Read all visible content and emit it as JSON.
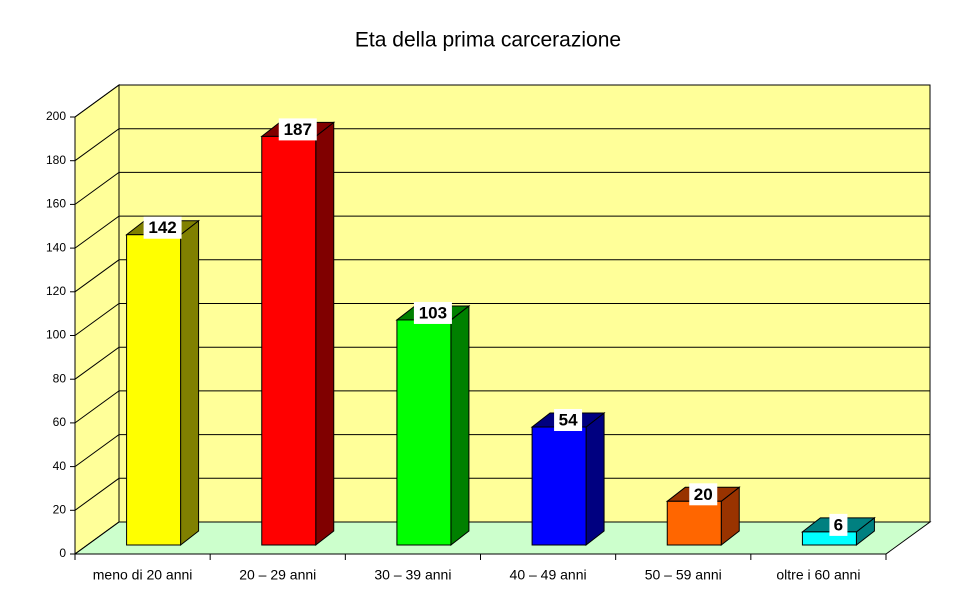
{
  "chart_data": {
    "type": "bar3d",
    "title": "Eta della prima carcerazione",
    "categories": [
      "meno di 20 anni",
      "20 – 29 anni",
      "30 – 39 anni",
      "40 – 49 anni",
      "50 – 59 anni",
      "oltre i 60 anni"
    ],
    "values": [
      142,
      187,
      103,
      54,
      20,
      6
    ],
    "colors": [
      "#ffff00",
      "#ff0000",
      "#00ff00",
      "#0000ff",
      "#ff6600",
      "#00ffff"
    ],
    "side_colors": [
      "#808000",
      "#800000",
      "#008000",
      "#000080",
      "#993300",
      "#008080"
    ],
    "ylim": [
      0,
      200
    ],
    "yticks": [
      0,
      20,
      40,
      60,
      80,
      100,
      120,
      140,
      160,
      180,
      200
    ],
    "grid": true
  }
}
